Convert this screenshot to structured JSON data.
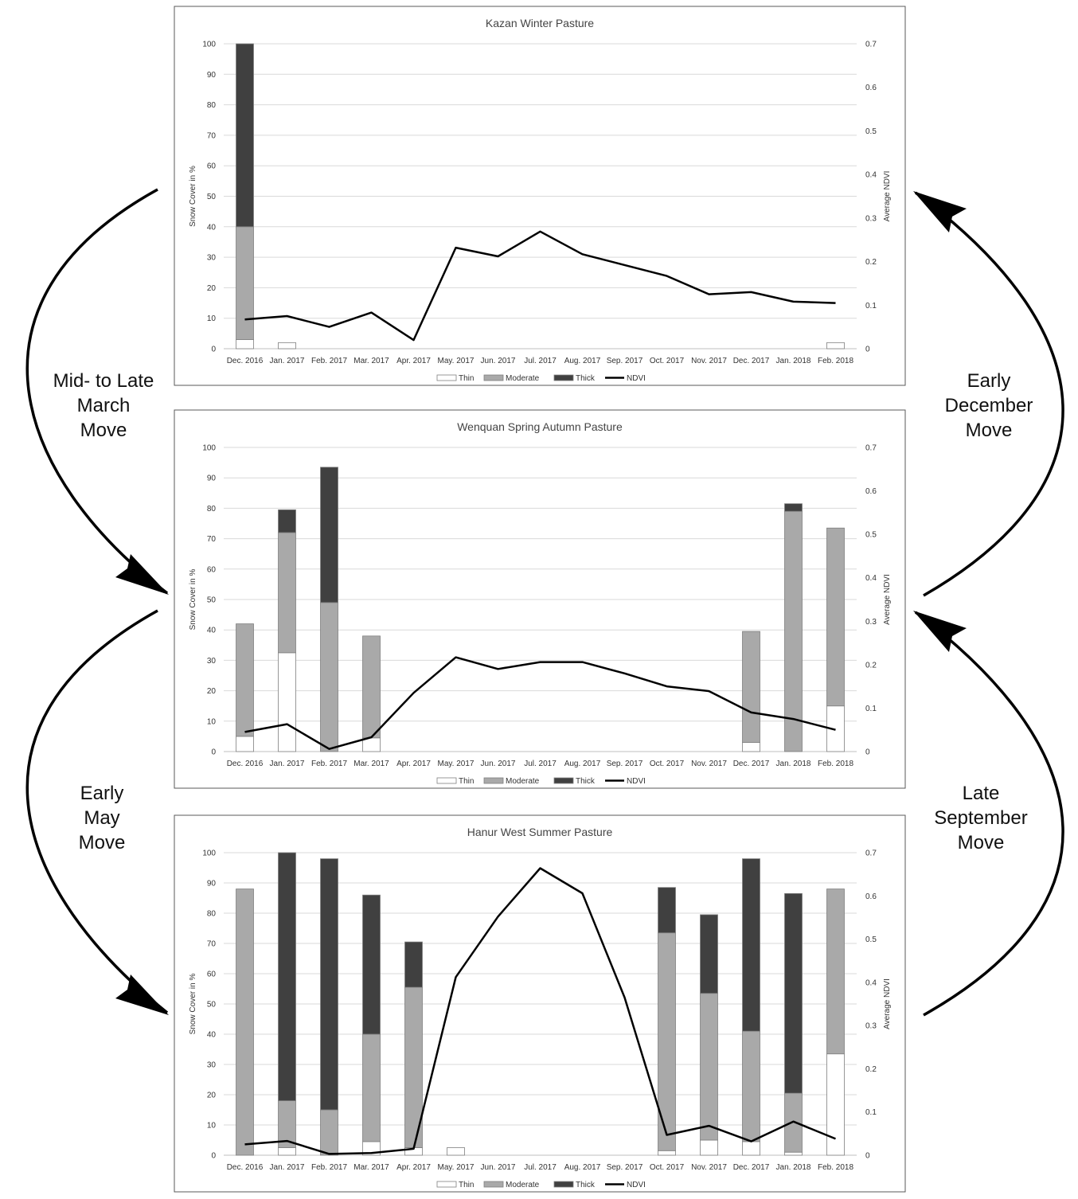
{
  "colors": {
    "thin": "#ffffff",
    "moderate": "#a9a9a9",
    "thick": "#404040",
    "ndvi": "#000000",
    "grid": "#d9d9d9",
    "frame": "#595959"
  },
  "legend": [
    "Thin",
    "Moderate",
    "Thick",
    "NDVI"
  ],
  "moves": {
    "left_top": [
      "Mid- to Late",
      "March",
      "Move"
    ],
    "left_bottom": [
      "Early",
      "May",
      "Move"
    ],
    "right_top": [
      "Early",
      "December",
      "Move"
    ],
    "right_bottom": [
      "Late",
      "September",
      "Move"
    ]
  },
  "chart_data": [
    {
      "type": "bar",
      "title": "Kazan Winter Pasture",
      "ylabel": "Snow Cover in %",
      "y2label": "Average NDVI",
      "ylim": [
        0,
        100
      ],
      "y2lim": [
        0,
        0.7
      ],
      "yticks": [
        "0",
        "10",
        "20",
        "30",
        "40",
        "50",
        "60",
        "70",
        "80",
        "90",
        "100"
      ],
      "y2ticks": [
        "0",
        "0.1",
        "0.2",
        "0.3",
        "0.4",
        "0.5",
        "0.6",
        "0.7"
      ],
      "categories": [
        "Dec. 2016",
        "Jan. 2017",
        "Feb. 2017",
        "Mar. 2017",
        "Apr. 2017",
        "May. 2017",
        "Jun. 2017",
        "Jul. 2017",
        "Aug. 2017",
        "Sep. 2017",
        "Oct. 2017",
        "Nov. 2017",
        "Dec. 2017",
        "Jan. 2018",
        "Feb. 2018"
      ],
      "series": [
        {
          "name": "Thin",
          "values": [
            3,
            2,
            0,
            0,
            0,
            0,
            0,
            0,
            0,
            0,
            0,
            0,
            0,
            0,
            2
          ]
        },
        {
          "name": "Moderate",
          "values": [
            37,
            0,
            0,
            0,
            0,
            0,
            0,
            0,
            0,
            0,
            0,
            0,
            0,
            0,
            0
          ]
        },
        {
          "name": "Thick",
          "values": [
            60,
            0,
            0,
            0,
            0,
            0,
            0,
            0,
            0,
            0,
            0,
            0,
            0,
            0,
            0
          ]
        },
        {
          "name": "NDVI",
          "axis": "right",
          "values": [
            0.067,
            0.075,
            0.05,
            0.083,
            0.02,
            0.232,
            0.212,
            0.269,
            0.217,
            0.192,
            0.167,
            0.125,
            0.13,
            0.108,
            0.105
          ]
        }
      ],
      "legend_position": "bottom",
      "grid": true
    },
    {
      "type": "bar",
      "title": "Wenquan Spring Autumn Pasture",
      "ylabel": "Snow Cover in %",
      "y2label": "Average NDVI",
      "ylim": [
        0,
        100
      ],
      "y2lim": [
        0,
        0.7
      ],
      "yticks": [
        "0",
        "10",
        "20",
        "30",
        "40",
        "50",
        "60",
        "70",
        "80",
        "90",
        "100"
      ],
      "y2ticks": [
        "0",
        "0.1",
        "0.2",
        "0.3",
        "0.4",
        "0.5",
        "0.6",
        "0.7"
      ],
      "categories": [
        "Dec. 2016",
        "Jan. 2017",
        "Feb. 2017",
        "Mar. 2017",
        "Apr. 2017",
        "May. 2017",
        "Jun. 2017",
        "Jul. 2017",
        "Aug. 2017",
        "Sep. 2017",
        "Oct. 2017",
        "Nov. 2017",
        "Dec. 2017",
        "Jan. 2018",
        "Feb. 2018"
      ],
      "series": [
        {
          "name": "Thin",
          "values": [
            5,
            32.5,
            0,
            4.5,
            0,
            0,
            0,
            0,
            0,
            0,
            0,
            0,
            3,
            0,
            15
          ]
        },
        {
          "name": "Moderate",
          "values": [
            37,
            39.5,
            49,
            33.5,
            0,
            0,
            0,
            0,
            0,
            0,
            0,
            0,
            36.5,
            79,
            58.5
          ]
        },
        {
          "name": "Thick",
          "values": [
            0,
            7.5,
            44.5,
            0,
            0,
            0,
            0,
            0,
            0,
            0,
            0,
            0,
            0,
            2.5,
            0
          ]
        },
        {
          "name": "NDVI",
          "axis": "right",
          "values": [
            0.045,
            0.063,
            0.006,
            0.033,
            0.135,
            0.217,
            0.19,
            0.206,
            0.206,
            0.18,
            0.15,
            0.139,
            0.09,
            0.075,
            0.05
          ]
        }
      ],
      "legend_position": "bottom",
      "grid": true
    },
    {
      "type": "bar",
      "title": "Hanur West Summer Pasture",
      "ylabel": "Snow Cover in %",
      "y2label": "Average NDVI",
      "ylim": [
        0,
        100
      ],
      "y2lim": [
        0,
        0.7
      ],
      "yticks": [
        "0",
        "10",
        "20",
        "30",
        "40",
        "50",
        "60",
        "70",
        "80",
        "90",
        "100"
      ],
      "y2ticks": [
        "0",
        "0.1",
        "0.2",
        "0.3",
        "0.4",
        "0.5",
        "0.6",
        "0.7"
      ],
      "categories": [
        "Dec. 2016",
        "Jan. 2017",
        "Feb. 2017",
        "Mar. 2017",
        "Apr. 2017",
        "May. 2017",
        "Jun. 2017",
        "Jul. 2017",
        "Aug. 2017",
        "Sep. 2017",
        "Oct. 2017",
        "Nov. 2017",
        "Dec. 2017",
        "Jan. 2018",
        "Feb. 2018"
      ],
      "series": [
        {
          "name": "Thin",
          "values": [
            0,
            2.5,
            0,
            4.5,
            2.5,
            2.5,
            0,
            0,
            0,
            0,
            1.5,
            5,
            4.5,
            1,
            33.5
          ]
        },
        {
          "name": "Moderate",
          "values": [
            88,
            15.5,
            15,
            35.5,
            53,
            0,
            0,
            0,
            0,
            0,
            72,
            48.5,
            36.5,
            19.5,
            54.5
          ]
        },
        {
          "name": "Thick",
          "values": [
            0,
            82,
            83,
            46,
            15,
            0,
            0,
            0,
            0,
            0,
            15,
            26,
            57,
            66,
            0
          ]
        },
        {
          "name": "NDVI",
          "axis": "right",
          "values": [
            0.025,
            0.033,
            0.003,
            0.005,
            0.015,
            0.412,
            0.552,
            0.664,
            0.606,
            0.365,
            0.047,
            0.068,
            0.032,
            0.078,
            0.038
          ]
        }
      ],
      "legend_position": "bottom",
      "grid": true
    }
  ]
}
